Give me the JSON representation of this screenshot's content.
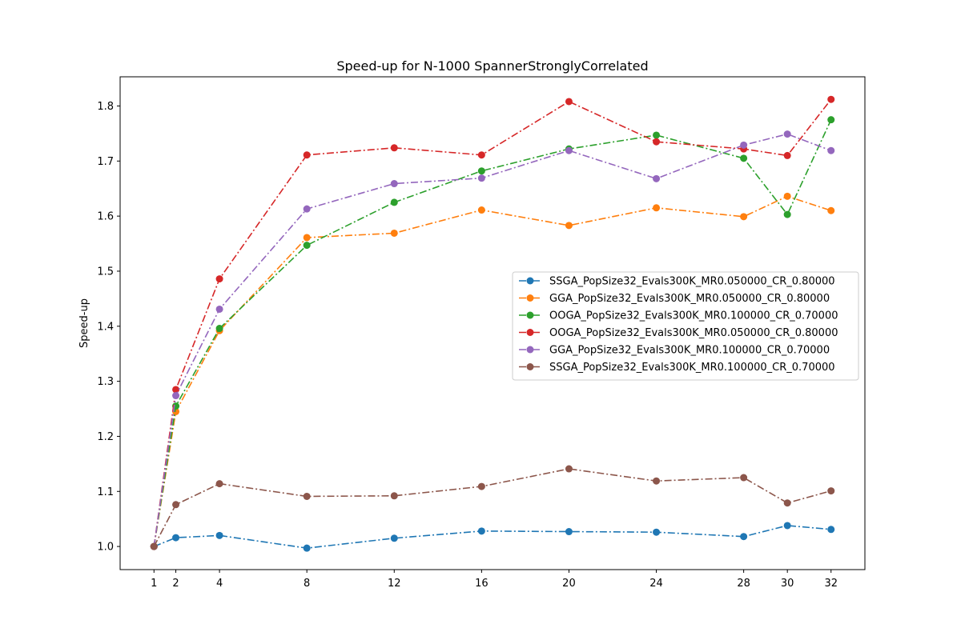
{
  "chart_data": {
    "type": "line",
    "title": "Speed-up for N-1000 SpannerStronglyCorrelated",
    "xlabel": "",
    "ylabel": "Speed-up",
    "x": [
      1,
      2,
      4,
      8,
      12,
      16,
      20,
      24,
      28,
      30,
      32
    ],
    "x_tick_labels": [
      "1",
      "2",
      "4",
      "8",
      "12",
      "16",
      "20",
      "24",
      "28",
      "30",
      "32"
    ],
    "xlim": [
      -0.55,
      33.55
    ],
    "ylim": [
      0.958,
      1.853
    ],
    "y_ticks": [
      1.0,
      1.1,
      1.2,
      1.3,
      1.4,
      1.5,
      1.6,
      1.7,
      1.8
    ],
    "y_tick_labels": [
      "1.0",
      "1.1",
      "1.2",
      "1.3",
      "1.4",
      "1.5",
      "1.6",
      "1.7",
      "1.8"
    ],
    "grid": false,
    "legend_position": "center-right",
    "series": [
      {
        "name": "SSGA_PopSize32_Evals300K_MR0.050000_CR_0.80000",
        "color": "#1f77b4",
        "values": [
          1.0,
          1.016,
          1.02,
          0.997,
          1.015,
          1.028,
          1.027,
          1.026,
          1.018,
          1.038,
          1.031
        ]
      },
      {
        "name": "GGA_PopSize32_Evals300K_MR0.050000_CR_0.80000",
        "color": "#ff7f0e",
        "values": [
          1.0,
          1.245,
          1.392,
          1.561,
          1.569,
          1.611,
          1.583,
          1.615,
          1.599,
          1.636,
          1.61
        ]
      },
      {
        "name": "OOGA_PopSize32_Evals300K_MR0.100000_CR_0.70000",
        "color": "#2ca02c",
        "values": [
          1.0,
          1.255,
          1.396,
          1.547,
          1.625,
          1.682,
          1.722,
          1.747,
          1.705,
          1.603,
          1.775
        ]
      },
      {
        "name": "OOGA_PopSize32_Evals300K_MR0.050000_CR_0.80000",
        "color": "#d62728",
        "values": [
          1.0,
          1.285,
          1.486,
          1.711,
          1.724,
          1.711,
          1.808,
          1.735,
          1.722,
          1.71,
          1.812
        ]
      },
      {
        "name": "GGA_PopSize32_Evals300K_MR0.100000_CR_0.70000",
        "color": "#9467bd",
        "values": [
          1.0,
          1.274,
          1.431,
          1.613,
          1.659,
          1.669,
          1.719,
          1.668,
          1.729,
          1.749,
          1.719
        ]
      },
      {
        "name": "SSGA_PopSize32_Evals300K_MR0.100000_CR_0.70000",
        "color": "#8c564b",
        "values": [
          1.0,
          1.076,
          1.114,
          1.091,
          1.092,
          1.109,
          1.141,
          1.119,
          1.125,
          1.079,
          1.101
        ]
      }
    ]
  }
}
